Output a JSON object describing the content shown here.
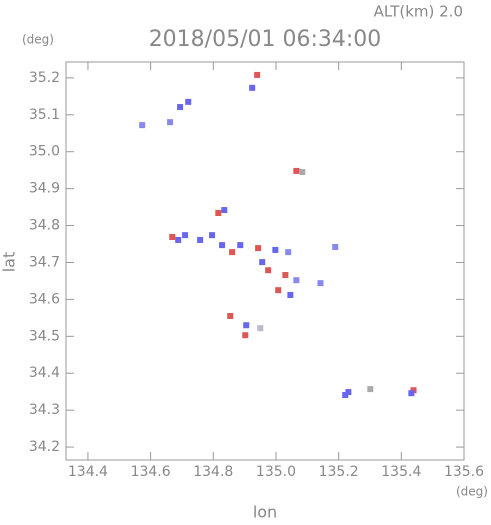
{
  "chart_data": {
    "type": "scatter",
    "title": "2018/05/01 06:34:00",
    "subtitle": "ALT(km) 2.0",
    "y_unit": "(deg)",
    "x_unit": "(deg)",
    "ylabel": "lat",
    "xlabel": "lon",
    "xlim": [
      134.33,
      135.6
    ],
    "ylim": [
      34.165,
      35.243
    ],
    "xticks": [
      134.4,
      134.6,
      134.8,
      {
        "value": 135,
        "label": "135.0"
      },
      135.2,
      135.4,
      135.6
    ],
    "yticks": [
      34.2,
      34.3,
      34.4,
      34.5,
      34.6,
      34.7,
      34.8,
      34.9,
      {
        "value": 35,
        "label": "35.0"
      },
      35.1,
      35.2
    ],
    "x": [
      134.94,
      134.924,
      134.72,
      134.694,
      134.573,
      134.662,
      135.065,
      135.084,
      134.816,
      134.835,
      134.669,
      134.688,
      134.71,
      134.758,
      134.796,
      134.828,
      134.86,
      134.886,
      134.943,
      134.956,
      134.975,
      134.998,
      135.039,
      135.03,
      135.007,
      135.046,
      135.065,
      135.142,
      135.189,
      134.854,
      134.905,
      134.902,
      134.95,
      135.221,
      135.231,
      135.301,
      135.439,
      135.432
    ],
    "y": [
      35.208,
      35.173,
      35.135,
      35.121,
      35.072,
      35.08,
      34.948,
      34.945,
      34.834,
      34.842,
      34.769,
      34.761,
      34.774,
      34.761,
      34.774,
      34.747,
      34.728,
      34.747,
      34.739,
      34.701,
      34.679,
      34.734,
      34.728,
      34.666,
      34.625,
      34.612,
      34.652,
      34.644,
      34.742,
      34.555,
      34.53,
      34.503,
      34.522,
      34.341,
      34.349,
      34.357,
      34.354,
      34.346
    ],
    "colors": [
      "#e05555",
      "#6666ee",
      "#6666ee",
      "#6666ee",
      "#8888ee",
      "#8888ee",
      "#e05555",
      "#aaaaaa",
      "#e05555",
      "#6666ee",
      "#e05555",
      "#6666ee",
      "#6666ee",
      "#6666ee",
      "#6666ee",
      "#6666ee",
      "#e05555",
      "#6666ee",
      "#e05555",
      "#6666ee",
      "#e05555",
      "#6666ee",
      "#8888ee",
      "#e05555",
      "#e05555",
      "#6666ee",
      "#8888ee",
      "#8888ee",
      "#8888ee",
      "#e05555",
      "#6666ee",
      "#e05555",
      "#bbbbcc",
      "#6666ee",
      "#6666ee",
      "#aaaaaa",
      "#e05555",
      "#6666ee"
    ]
  }
}
